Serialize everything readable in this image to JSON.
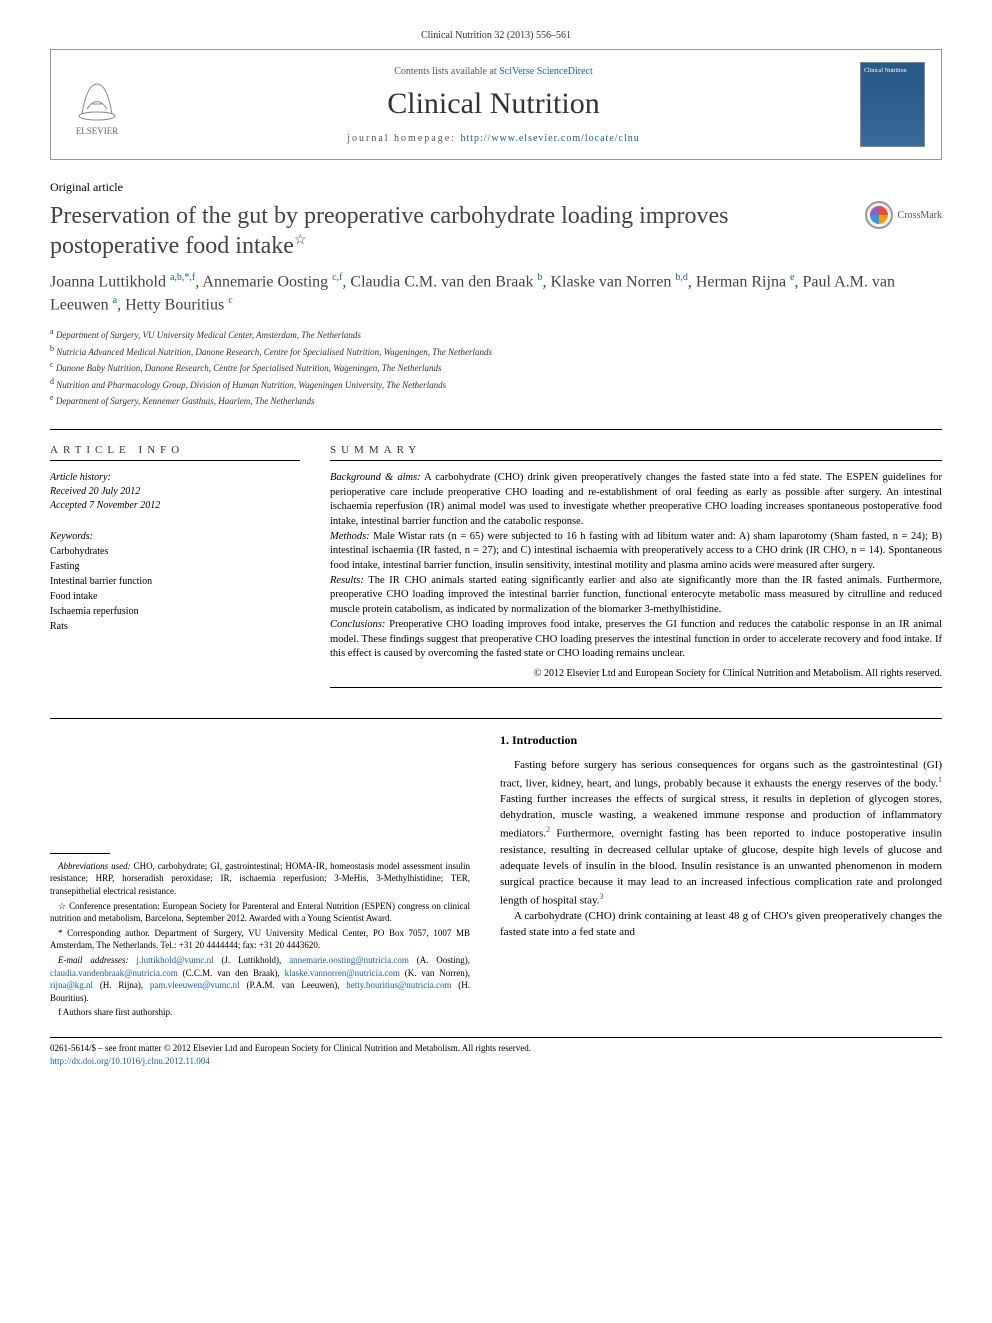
{
  "journal_ref": "Clinical Nutrition 32 (2013) 556–561",
  "header": {
    "contents_text": "Contents lists available at ",
    "contents_link": "SciVerse ScienceDirect",
    "journal_name": "Clinical Nutrition",
    "homepage_label": "journal homepage: ",
    "homepage_url": "http://www.elsevier.com/locate/clnu",
    "publisher": "ELSEVIER"
  },
  "article_type": "Original article",
  "title": "Preservation of the gut by preoperative carbohydrate loading improves postoperative food intake",
  "title_note_marker": "☆",
  "crossmark_label": "CrossMark",
  "authors_html": "Joanna Luttikhold <sup>a,b,*,f</sup>, Annemarie Oosting <sup>c,f</sup>, Claudia C.M. van den Braak <sup>b</sup>, Klaske van Norren <sup>b,d</sup>, Herman Rijna <sup>e</sup>, Paul A.M. van Leeuwen <sup>a</sup>, Hetty Bouritius <sup>c</sup>",
  "affiliations": [
    {
      "sup": "a",
      "text": "Department of Surgery, VU University Medical Center, Amsterdam, The Netherlands"
    },
    {
      "sup": "b",
      "text": "Nutricia Advanced Medical Nutrition, Danone Research, Centre for Specialised Nutrition, Wageningen, The Netherlands"
    },
    {
      "sup": "c",
      "text": "Danone Baby Nutrition, Danone Research, Centre for Specialised Nutrition, Wageningen, The Netherlands"
    },
    {
      "sup": "d",
      "text": "Nutrition and Pharmacology Group, Division of Human Nutrition, Wageningen University, The Netherlands"
    },
    {
      "sup": "e",
      "text": "Department of Surgery, Kennemer Gasthuis, Haarlem, The Netherlands"
    }
  ],
  "article_info": {
    "heading": "ARTICLE INFO",
    "history_label": "Article history:",
    "received": "Received 20 July 2012",
    "accepted": "Accepted 7 November 2012",
    "keywords_label": "Keywords:",
    "keywords": [
      "Carbohydrates",
      "Fasting",
      "Intestinal barrier function",
      "Food intake",
      "Ischaemia reperfusion",
      "Rats"
    ]
  },
  "summary": {
    "heading": "SUMMARY",
    "paragraphs": [
      {
        "label": "Background & aims:",
        "text": " A carbohydrate (CHO) drink given preoperatively changes the fasted state into a fed state. The ESPEN guidelines for perioperative care include preoperative CHO loading and re-establishment of oral feeding as early as possible after surgery. An intestinal ischaemia reperfusion (IR) animal model was used to investigate whether preoperative CHO loading increases spontaneous postoperative food intake, intestinal barrier function and the catabolic response."
      },
      {
        "label": "Methods:",
        "text": " Male Wistar rats (n = 65) were subjected to 16 h fasting with ad libitum water and: A) sham laparotomy (Sham fasted, n = 24); B) intestinal ischaemia (IR fasted, n = 27); and C) intestinal ischaemia with preoperatively access to a CHO drink (IR CHO, n = 14). Spontaneous food intake, intestinal barrier function, insulin sensitivity, intestinal motility and plasma amino acids were measured after surgery."
      },
      {
        "label": "Results:",
        "text": " The IR CHO animals started eating significantly earlier and also ate significantly more than the IR fasted animals. Furthermore, preoperative CHO loading improved the intestinal barrier function, functional enterocyte metabolic mass measured by citrulline and reduced muscle protein catabolism, as indicated by normalization of the biomarker 3-methylhistidine."
      },
      {
        "label": "Conclusions:",
        "text": " Preoperative CHO loading improves food intake, preserves the GI function and reduces the catabolic response in an IR animal model. These findings suggest that preoperative CHO loading preserves the intestinal function in order to accelerate recovery and food intake. If this effect is caused by overcoming the fasted state or CHO loading remains unclear."
      }
    ],
    "copyright": "© 2012 Elsevier Ltd and European Society for Clinical Nutrition and Metabolism. All rights reserved."
  },
  "footnotes": {
    "abbrev_label": "Abbreviations used:",
    "abbrev_text": " CHO, carbohydrate; GI, gastrointestinal; HOMA-IR, homeostasis model assessment insulin resistance; HRP, horseradish peroxidase; IR, ischaemia reperfusion; 3-MeHis, 3-Methylhistidine; TER, transepithelial electrical resistance.",
    "conference": "☆ Conference presentation: European Society for Parenteral and Enteral Nutrition (ESPEN) congress on clinical nutrition and metabolism, Barcelona, September 2012. Awarded with a Young Scientist Award.",
    "corresponding": "* Corresponding author. Department of Surgery, VU University Medical Center, PO Box 7057, 1007 MB Amsterdam, The Netherlands. Tel.: +31 20 4444444; fax: +31 20 4443620.",
    "emails_label": "E-mail addresses:",
    "emails": [
      {
        "addr": "j.luttikhold@vumc.nl",
        "who": "(J. Luttikhold)"
      },
      {
        "addr": "annemarie.oosting@nutricia.com",
        "who": "(A. Oosting)"
      },
      {
        "addr": "claudia.vandenbraak@nutricia.com",
        "who": "(C.C.M. van den Braak)"
      },
      {
        "addr": "klaske.vannorren@nutricia.com",
        "who": "(K. van Norren)"
      },
      {
        "addr": "rijna@kg.nl",
        "who": "(H. Rijna)"
      },
      {
        "addr": "pam.vleeuwen@vumc.nl",
        "who": "(P.A.M. van Leeuwen)"
      },
      {
        "addr": "hetty.bouritius@nutricia.com",
        "who": "(H. Bouritius)"
      }
    ],
    "shared_first": "f Authors share first authorship."
  },
  "intro": {
    "heading": "1. Introduction",
    "p1": "Fasting before surgery has serious consequences for organs such as the gastrointestinal (GI) tract, liver, kidney, heart, and lungs, probably because it exhausts the energy reserves of the body.",
    "p1_ref": "1",
    "p1b": " Fasting further increases the effects of surgical stress, it results in depletion of glycogen stores, dehydration, muscle wasting, a weakened immune response and production of inflammatory mediators.",
    "p1b_ref": "2",
    "p1c": " Furthermore, overnight fasting has been reported to induce postoperative insulin resistance, resulting in decreased cellular uptake of glucose, despite high levels of glucose and adequate levels of insulin in the blood. Insulin resistance is an unwanted phenomenon in modern surgical practice because it may lead to an increased infectious complication rate and prolonged length of hospital stay.",
    "p1c_ref": "3",
    "p2": "A carbohydrate (CHO) drink containing at least 48 g of CHO's given preoperatively changes the fasted state into a fed state and"
  },
  "footer": {
    "issn_line": "0261-5614/$ – see front matter © 2012 Elsevier Ltd and European Society for Clinical Nutrition and Metabolism. All rights reserved.",
    "doi": "http://dx.doi.org/10.1016/j.clnu.2012.11.004"
  },
  "colors": {
    "link": "#1a5fb4",
    "text": "#000000",
    "title": "#444444"
  }
}
